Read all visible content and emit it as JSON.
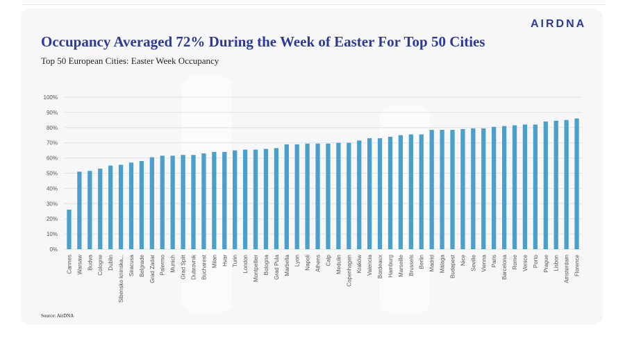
{
  "header": {
    "logo_text": "AIRDNA",
    "title": "Occupancy Averaged 72% During the Week of Easter For Top 50 Cities",
    "subtitle": "Top 50 European Cities: Easter Week Occupancy",
    "source": "Source: AirDNA"
  },
  "colors": {
    "title": "#2b3a9a",
    "logo": "#2b3a9a",
    "bar": "#4a9fcc",
    "grid": "#e2e2e6",
    "tick_text": "#555555"
  },
  "chart_data": {
    "type": "bar",
    "title": "Top 50 European Cities: Easter Week Occupancy",
    "xlabel": "",
    "ylabel": "",
    "ylim": [
      0,
      100
    ],
    "y_ticks": [
      "0%",
      "10%",
      "20%",
      "30%",
      "40%",
      "50%",
      "60%",
      "70%",
      "80%",
      "90%",
      "100%"
    ],
    "y_tick_values": [
      0,
      10,
      20,
      30,
      40,
      50,
      60,
      70,
      80,
      90,
      100
    ],
    "grid": true,
    "legend": "none",
    "categories": [
      "Cannes",
      "Warsaw",
      "Budva",
      "Cologne",
      "Dublin",
      "Sibensko kninska...",
      "Siracusa",
      "Belgrade",
      "Grad Zadar",
      "Palermo",
      "Munich",
      "Grad Split",
      "Dubrovnik",
      "Bucharest",
      "Milan",
      "Hvar",
      "Turin",
      "London",
      "Montpellier",
      "Bologna",
      "Grad Pula",
      "Marbella",
      "Lyon",
      "Napoli",
      "Athens",
      "Calp",
      "Medulin",
      "Copenhagen",
      "Kraków",
      "Valencia",
      "Bordeaux",
      "Hamburg",
      "Marseille",
      "Brussels",
      "Berlin",
      "Madrid",
      "Málaga",
      "Budapest",
      "Nice",
      "Seville",
      "Vienna",
      "Paris",
      "Barcelona",
      "Rome",
      "Venice",
      "Porto",
      "Prague",
      "Lisbon",
      "Amsterdam",
      "Florence"
    ],
    "values": [
      26,
      51,
      51.5,
      53,
      55,
      55.5,
      57,
      58,
      60.5,
      61.5,
      61.5,
      62,
      62,
      63,
      64,
      64,
      65,
      65.5,
      65.5,
      66,
      66.5,
      69,
      69,
      69.5,
      69.5,
      69.5,
      70,
      70,
      71.5,
      73,
      73,
      74,
      75,
      75.5,
      75.5,
      78.5,
      78.5,
      78.5,
      79,
      79.5,
      79.5,
      80.5,
      81,
      81.5,
      82,
      82,
      84,
      84.5,
      85,
      86
    ]
  }
}
